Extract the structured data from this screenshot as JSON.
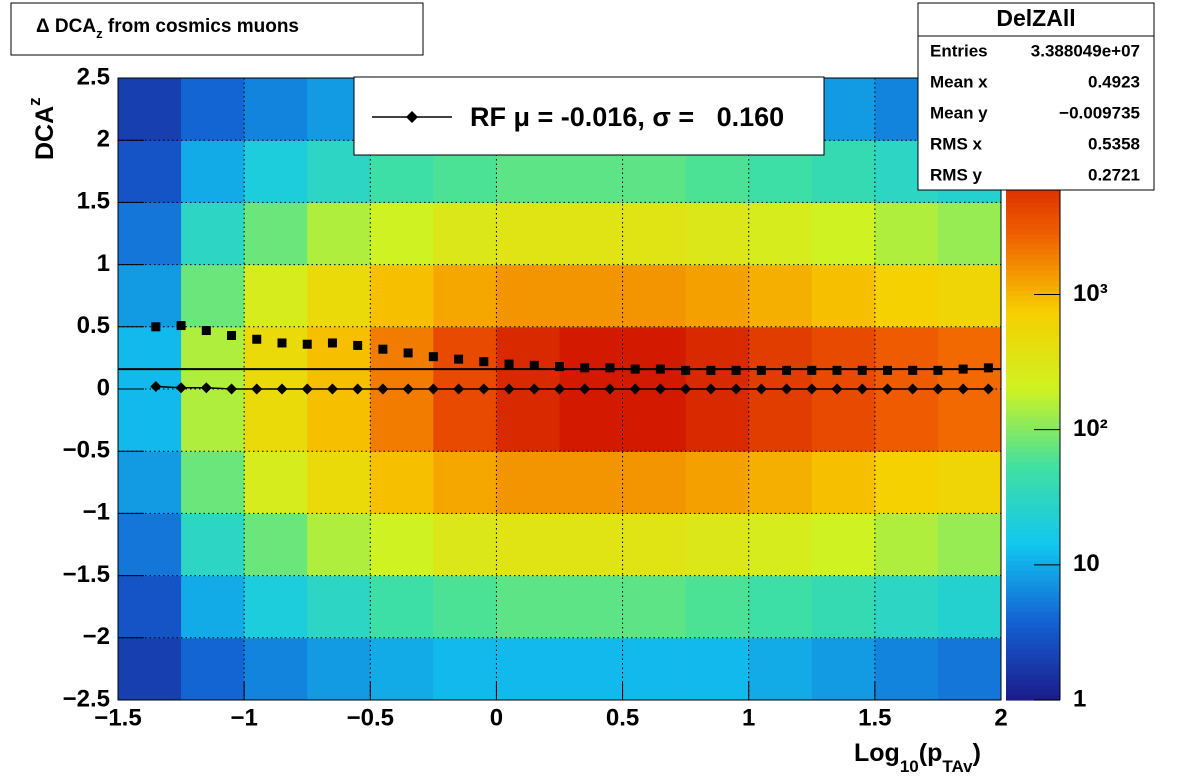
{
  "chart_data": {
    "type": "heatmap",
    "title": {
      "pre": "Δ DCA",
      "sub": "z",
      "post": " from cosmics muons"
    },
    "y_label": {
      "main": "DCA",
      "sub": "z"
    },
    "x_label": {
      "main": "Log",
      "sub1": "10",
      "mid": "(p",
      "sub2": "TAv",
      "post": ")"
    },
    "xlim": [
      -1.5,
      2
    ],
    "ylim": [
      -2.5,
      2.5
    ],
    "xticks": [
      {
        "value": -1.5,
        "label": "−1.5"
      },
      {
        "value": -1,
        "label": "−1"
      },
      {
        "value": -0.5,
        "label": "−0.5"
      },
      0,
      0.5,
      1,
      1.5,
      2
    ],
    "yticks": [
      {
        "value": -2.5,
        "label": "−2.5"
      },
      {
        "value": -2,
        "label": "−2"
      },
      {
        "value": -1.5,
        "label": "−1.5"
      },
      {
        "value": -1,
        "label": "−1"
      },
      {
        "value": -0.5,
        "label": "−0.5"
      },
      0,
      0.5,
      1,
      1.5,
      2,
      2.5
    ],
    "grid": true,
    "zlim": [
      1,
      40000
    ],
    "zlog": true,
    "zticks": [
      1,
      10,
      {
        "value": 100,
        "label": "10²"
      },
      {
        "value": 1000,
        "label": "10³"
      }
    ],
    "palette": [
      "#1c1a8a",
      "#1360d2",
      "#12c6f0",
      "#3fe0a2",
      "#cff222",
      "#f7cf00",
      "#f05f00",
      "#cf1000",
      "#5e0000"
    ],
    "x_bins": [
      -1.5,
      -1.25,
      -1,
      -0.75,
      -0.5,
      -0.25,
      0,
      0.25,
      0.5,
      0.75,
      1,
      1.25,
      1.5,
      1.75,
      2
    ],
    "y_bins": [
      -2.5,
      -2,
      -1.5,
      -1,
      -0.5,
      0,
      0.5,
      1,
      1.5,
      2,
      2.5
    ],
    "z": [
      [
        2,
        3,
        5,
        8,
        12,
        12,
        8,
        5,
        3,
        2
      ],
      [
        4,
        10,
        30,
        80,
        150,
        150,
        80,
        30,
        10,
        4
      ],
      [
        6,
        20,
        80,
        250,
        500,
        500,
        250,
        80,
        20,
        6
      ],
      [
        8,
        30,
        150,
        500,
        900,
        900,
        500,
        150,
        30,
        8
      ],
      [
        10,
        50,
        200,
        900,
        2000,
        2000,
        900,
        200,
        50,
        10
      ],
      [
        12,
        60,
        300,
        1200,
        4000,
        4000,
        1200,
        300,
        60,
        12
      ],
      [
        12,
        70,
        350,
        1500,
        7000,
        7000,
        1500,
        350,
        70,
        12
      ],
      [
        12,
        70,
        350,
        1500,
        9000,
        9000,
        1500,
        350,
        70,
        12
      ],
      [
        12,
        70,
        350,
        1500,
        9000,
        9000,
        1500,
        350,
        70,
        12
      ],
      [
        12,
        60,
        300,
        1300,
        7000,
        7000,
        1300,
        300,
        60,
        12
      ],
      [
        10,
        50,
        250,
        1100,
        5000,
        5000,
        1100,
        250,
        50,
        10
      ],
      [
        8,
        40,
        200,
        900,
        4000,
        4000,
        900,
        200,
        40,
        8
      ],
      [
        6,
        30,
        150,
        700,
        3000,
        3000,
        700,
        150,
        30,
        6
      ],
      [
        5,
        25,
        120,
        600,
        2500,
        2500,
        600,
        120,
        25,
        5
      ]
    ],
    "x": [
      -1.35,
      -1.25,
      -1.15,
      -1.05,
      -0.95,
      -0.85,
      -0.75,
      -0.65,
      -0.55,
      -0.45,
      -0.35,
      -0.25,
      -0.15,
      -0.05,
      0.05,
      0.15,
      0.25,
      0.35,
      0.45,
      0.55,
      0.65,
      0.75,
      0.85,
      0.95,
      1.05,
      1.15,
      1.25,
      1.35,
      1.45,
      1.55,
      1.65,
      1.75,
      1.85,
      1.95
    ],
    "series": [
      {
        "name": "RF μ = -0.016, σ =   0.160",
        "marker": "diamond",
        "color": "#000000",
        "values": [
          0.02,
          0.01,
          0.01,
          0.0,
          0.0,
          0.0,
          0.0,
          0.0,
          0.0,
          0.0,
          0.0,
          0.0,
          0.0,
          0.0,
          0.0,
          0.0,
          0.0,
          0.0,
          0.0,
          0.0,
          0.0,
          0.0,
          0.0,
          0.0,
          0.0,
          0.0,
          0.0,
          0.0,
          0.0,
          0.0,
          0.0,
          0.0,
          0.0,
          0.0
        ]
      },
      {
        "marker": "square",
        "color": "#000000",
        "values": [
          0.5,
          0.51,
          0.47,
          0.43,
          0.4,
          0.37,
          0.36,
          0.37,
          0.35,
          0.32,
          0.29,
          0.26,
          0.24,
          0.22,
          0.2,
          0.19,
          0.18,
          0.17,
          0.17,
          0.16,
          0.16,
          0.15,
          0.15,
          0.15,
          0.15,
          0.15,
          0.15,
          0.15,
          0.15,
          0.15,
          0.15,
          0.15,
          0.16,
          0.17
        ]
      }
    ],
    "fit_line": 0.16,
    "stats": {
      "title": "DelZAll",
      "rows": [
        [
          "Entries",
          "3.388049e+07"
        ],
        [
          "Mean x",
          "0.4923"
        ],
        [
          "Mean y",
          "−0.009735"
        ],
        [
          "RMS x",
          "0.5358"
        ],
        [
          "RMS y",
          "0.2721"
        ]
      ]
    }
  }
}
